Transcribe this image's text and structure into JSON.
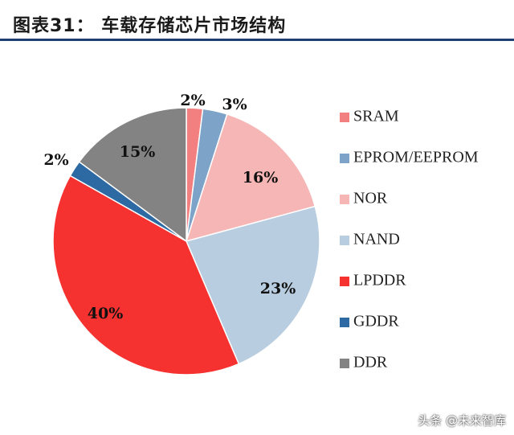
{
  "header": {
    "title": "图表31：  车载存储芯片市场结构",
    "rule_color": "#1f3f73"
  },
  "watermark": "头条 @未来智库",
  "chart_data": {
    "type": "pie",
    "title": "",
    "start_angle_deg": 0,
    "direction": "clockwise",
    "legend_position": "right",
    "slices": [
      {
        "label": "SRAM",
        "value": 2,
        "value_label": "2%",
        "color": "#f28080"
      },
      {
        "label": "EPROM/EEPROM",
        "value": 3,
        "value_label": "3%",
        "color": "#7ea3c8"
      },
      {
        "label": "NOR",
        "value": 16,
        "value_label": "16%",
        "color": "#f7b6b6"
      },
      {
        "label": "NAND",
        "value": 23,
        "value_label": "23%",
        "color": "#b9cde0"
      },
      {
        "label": "LPDDR",
        "value": 40,
        "value_label": "40%",
        "color": "#f53230"
      },
      {
        "label": "GDDR",
        "value": 2,
        "value_label": "2%",
        "color": "#2d6aa3"
      },
      {
        "label": "DDR",
        "value": 15,
        "value_label": "15%",
        "color": "#838383"
      }
    ]
  }
}
